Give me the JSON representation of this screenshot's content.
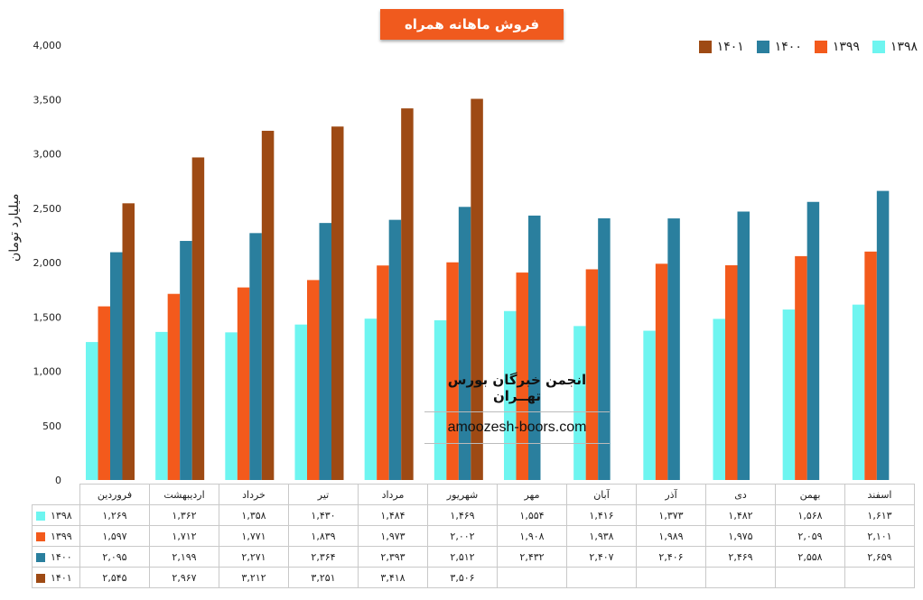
{
  "chart_data": {
    "type": "bar",
    "title": "فروش ماهانه همراه",
    "ylabel": "میلیارد تومان",
    "ylim": [
      0,
      4000
    ],
    "yticks": [
      "0",
      "500",
      "1,000",
      "1,500",
      "2,000",
      "2,500",
      "3,000",
      "3,500",
      "4,000"
    ],
    "grid": false,
    "legend_position": "top-right",
    "categories": [
      "فروردین",
      "اردیبهشت",
      "خرداد",
      "تیر",
      "مرداد",
      "شهریور",
      "مهر",
      "آبان",
      "آذر",
      "دی",
      "بهمن",
      "اسفند"
    ],
    "series": [
      {
        "name": "۱۳۹۸",
        "color": "#6ef5f0",
        "values": [
          1269,
          1362,
          1358,
          1430,
          1484,
          1469,
          1554,
          1416,
          1373,
          1482,
          1568,
          1613
        ],
        "labels": [
          "۱,۲۶۹",
          "۱,۳۶۲",
          "۱,۳۵۸",
          "۱,۴۳۰",
          "۱,۴۸۴",
          "۱,۴۶۹",
          "۱,۵۵۴",
          "۱,۴۱۶",
          "۱,۳۷۳",
          "۱,۴۸۲",
          "۱,۵۶۸",
          "۱,۶۱۳"
        ]
      },
      {
        "name": "۱۳۹۹",
        "color": "#f35a1c",
        "values": [
          1597,
          1712,
          1771,
          1839,
          1973,
          2002,
          1908,
          1938,
          1989,
          1975,
          2059,
          2101
        ],
        "labels": [
          "۱,۵۹۷",
          "۱,۷۱۲",
          "۱,۷۷۱",
          "۱,۸۳۹",
          "۱,۹۷۳",
          "۲,۰۰۲",
          "۱,۹۰۸",
          "۱,۹۳۸",
          "۱,۹۸۹",
          "۱,۹۷۵",
          "۲,۰۵۹",
          "۲,۱۰۱"
        ]
      },
      {
        "name": "۱۴۰۰",
        "color": "#2a7f9e",
        "values": [
          2095,
          2199,
          2271,
          2364,
          2393,
          2512,
          2432,
          2407,
          2406,
          2469,
          2558,
          2659
        ],
        "labels": [
          "۲,۰۹۵",
          "۲,۱۹۹",
          "۲,۲۷۱",
          "۲,۳۶۴",
          "۲,۳۹۳",
          "۲,۵۱۲",
          "۲,۴۳۲",
          "۲,۴۰۷",
          "۲,۴۰۶",
          "۲,۴۶۹",
          "۲,۵۵۸",
          "۲,۶۵۹"
        ]
      },
      {
        "name": "۱۴۰۱",
        "color": "#9e4a14",
        "values": [
          2545,
          2967,
          3212,
          3251,
          3418,
          3506,
          null,
          null,
          null,
          null,
          null,
          null
        ],
        "labels": [
          "۲,۵۴۵",
          "۲,۹۶۷",
          "۳,۲۱۲",
          "۳,۲۵۱",
          "۳,۴۱۸",
          "۳,۵۰۶",
          "",
          "",
          "",
          "",
          "",
          ""
        ]
      }
    ]
  },
  "watermark": {
    "title": "انجمن خبرگان بورس تهــران",
    "url": "amoozesh-boors.com"
  }
}
